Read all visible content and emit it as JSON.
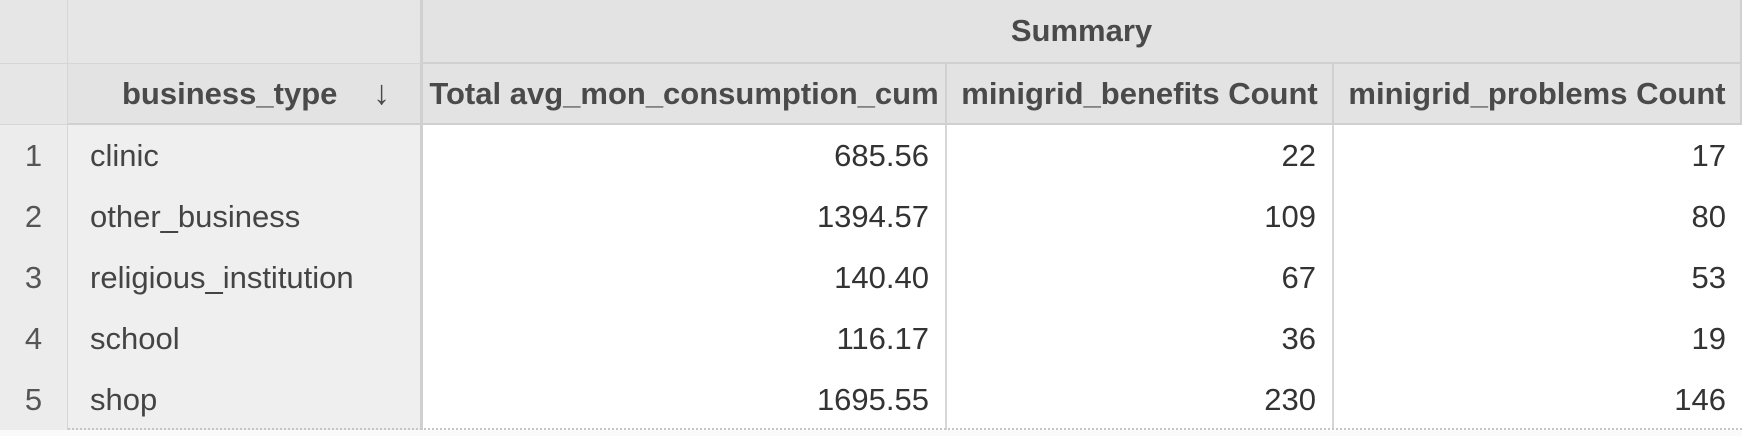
{
  "header": {
    "summary_label": "Summary",
    "row_field_label": "business_type",
    "sort_icon": "↓",
    "columns": [
      "Total avg_mon_consumption_cum",
      "minigrid_benefits Count",
      "minigrid_problems Count"
    ]
  },
  "rows": [
    {
      "num": "1",
      "type": "clinic",
      "consumption": "685.56",
      "benefits": "22",
      "problems": "17"
    },
    {
      "num": "2",
      "type": "other_business",
      "consumption": "1394.57",
      "benefits": "109",
      "problems": "80"
    },
    {
      "num": "3",
      "type": "religious_institution",
      "consumption": "140.40",
      "benefits": "67",
      "problems": "53"
    },
    {
      "num": "4",
      "type": "school",
      "consumption": "116.17",
      "benefits": "36",
      "problems": "19"
    },
    {
      "num": "5",
      "type": "shop",
      "consumption": "1695.55",
      "benefits": "230",
      "problems": "146"
    }
  ],
  "colors": {
    "header_bg": "#e3e3e3",
    "rowheader_bg": "#efefef",
    "value_bg": "#ffffff",
    "border": "#d0d0d0"
  }
}
